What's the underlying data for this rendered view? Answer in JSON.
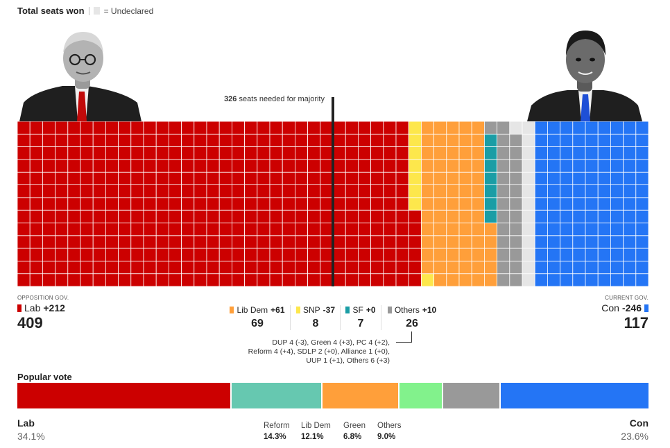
{
  "header": {
    "title": "Total seats won",
    "undeclared_label": "= Undeclared"
  },
  "majority": {
    "bold": "326",
    "text": "seats needed for majority"
  },
  "chart_data": {
    "type": "waffle",
    "total_seats": 650,
    "majority": 326,
    "cells_per_column": 13,
    "segments": [
      {
        "party": "Lab",
        "seats": 409,
        "color": "#cc0000"
      },
      {
        "party": "SNP",
        "seats": 8,
        "color": "#fde74c"
      },
      {
        "party": "Lib Dem",
        "seats": 69,
        "color": "#ff9f3a"
      },
      {
        "party": "SF",
        "seats": 7,
        "color": "#1a9da5"
      },
      {
        "party": "Others",
        "seats": 26,
        "color": "#999999"
      },
      {
        "party": "Undeclared",
        "seats": 14,
        "color": "#e6e6e6"
      },
      {
        "party": "Con",
        "seats": 117,
        "color": "#2475f5"
      }
    ],
    "popular_vote": [
      {
        "party": "Lab",
        "pct": 34.1,
        "color": "#cc0000"
      },
      {
        "party": "Reform",
        "pct": 14.3,
        "color": "#66c8b0"
      },
      {
        "party": "Lib Dem",
        "pct": 12.1,
        "color": "#ff9f3a"
      },
      {
        "party": "Green",
        "pct": 6.8,
        "color": "#82f28c"
      },
      {
        "party": "Others",
        "pct": 9.0,
        "color": "#999999"
      },
      {
        "party": "Con",
        "pct": 23.6,
        "color": "#2475f5"
      }
    ]
  },
  "lab": {
    "status": "OPPOSITION GOV.",
    "name": "Lab",
    "change": "+212",
    "seats": "409",
    "color": "#cc0000"
  },
  "con": {
    "status": "CURRENT GOV.",
    "name": "Con",
    "change": "-246",
    "seats": "117",
    "color": "#2475f5"
  },
  "parties": [
    {
      "name": "Lib Dem",
      "change": "+61",
      "seats": "69",
      "color": "#ff9f3a"
    },
    {
      "name": "SNP",
      "change": "-37",
      "seats": "8",
      "color": "#fde74c"
    },
    {
      "name": "SF",
      "change": "+0",
      "seats": "7",
      "color": "#1a9da5"
    },
    {
      "name": "Others",
      "change": "+10",
      "seats": "26",
      "color": "#999999"
    }
  ],
  "others_breakdown": [
    "DUP 4 (-3), Green 4 (+3), PC 4 (+2),",
    "Reform 4 (+4), SDLP 2 (+0), Alliance 1 (+0),",
    "UUP 1 (+1), Others 6 (+3)"
  ],
  "popular_vote": {
    "title": "Popular vote",
    "lab": {
      "name": "Lab",
      "pct": "34.1%"
    },
    "con": {
      "name": "Con",
      "pct": "23.6%"
    },
    "middle": [
      {
        "name": "Reform",
        "pct": "14.3%"
      },
      {
        "name": "Lib Dem",
        "pct": "12.1%"
      },
      {
        "name": "Green",
        "pct": "6.8%"
      },
      {
        "name": "Others",
        "pct": "9.0%"
      }
    ]
  }
}
